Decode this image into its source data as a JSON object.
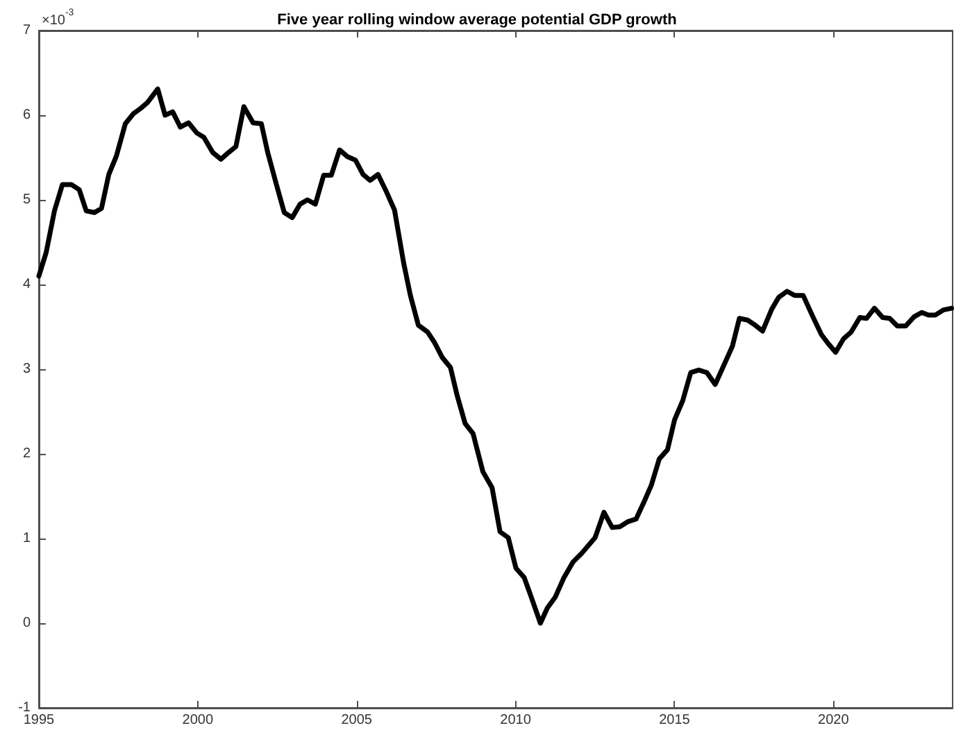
{
  "chart_data": {
    "type": "line",
    "title": "Five year rolling window average potential GDP growth",
    "annotations": [
      "×10$^{-3}$"
    ],
    "x": [
      1995.0,
      1995.23,
      1995.49,
      1995.74,
      1996.03,
      1996.27,
      1996.49,
      1996.75,
      1996.97,
      1997.2,
      1997.44,
      1997.72,
      1997.98,
      1998.2,
      1998.42,
      1998.74,
      1998.97,
      1999.21,
      1999.45,
      1999.71,
      1999.97,
      2000.19,
      2000.47,
      2000.73,
      2000.97,
      2001.2,
      2001.45,
      2001.74,
      2002.0,
      2002.2,
      2002.46,
      2002.72,
      2002.97,
      2003.22,
      2003.45,
      2003.7,
      2003.96,
      2004.2,
      2004.46,
      2004.71,
      2004.96,
      2005.2,
      2005.42,
      2005.67,
      2005.93,
      2006.19,
      2006.48,
      2006.69,
      2006.94,
      2007.23,
      2007.44,
      2007.69,
      2007.95,
      2008.16,
      2008.41,
      2008.66,
      2008.97,
      2009.26,
      2009.51,
      2009.77,
      2010.01,
      2010.27,
      2010.49,
      2010.78,
      2011.0,
      2011.25,
      2011.51,
      2011.8,
      2012.09,
      2012.5,
      2012.78,
      2013.04,
      2013.28,
      2013.54,
      2013.79,
      2014.05,
      2014.27,
      2014.52,
      2014.78,
      2015.0,
      2015.26,
      2015.51,
      2015.77,
      2016.02,
      2016.28,
      2016.82,
      2017.04,
      2017.3,
      2017.5,
      2017.77,
      2018.06,
      2018.28,
      2018.54,
      2018.79,
      2019.05,
      2019.34,
      2019.62,
      2019.84,
      2020.07,
      2020.32,
      2020.56,
      2020.83,
      2021.04,
      2021.29,
      2021.55,
      2021.77,
      2022.01,
      2022.27,
      2022.54,
      2022.78,
      2022.99,
      2023.21,
      2023.46,
      2023.72
    ],
    "series": [
      {
        "color": "#000000",
        "values": [
          4.1,
          4.38,
          4.87,
          5.18,
          5.18,
          5.12,
          4.87,
          4.85,
          4.9,
          5.3,
          5.52,
          5.9,
          6.02,
          6.08,
          6.15,
          6.31,
          6.0,
          6.04,
          5.86,
          5.91,
          5.79,
          5.74,
          5.56,
          5.48,
          5.56,
          5.63,
          6.1,
          5.91,
          5.9,
          5.56,
          5.2,
          4.85,
          4.79,
          4.95,
          5.0,
          4.95,
          5.29,
          5.29,
          5.59,
          5.51,
          5.47,
          5.3,
          5.23,
          5.3,
          5.1,
          4.88,
          4.25,
          3.87,
          3.52,
          3.44,
          3.32,
          3.14,
          3.02,
          2.69,
          2.36,
          2.24,
          1.79,
          1.6,
          1.08,
          1.01,
          0.65,
          0.54,
          0.31,
          0.0,
          0.18,
          0.31,
          0.53,
          0.72,
          0.83,
          1.01,
          1.31,
          1.13,
          1.14,
          1.2,
          1.23,
          1.44,
          1.63,
          1.94,
          2.05,
          2.4,
          2.63,
          2.96,
          2.99,
          2.96,
          2.82,
          3.27,
          3.6,
          3.58,
          3.53,
          3.45,
          3.71,
          3.85,
          3.92,
          3.87,
          3.87,
          3.63,
          3.41,
          3.3,
          3.2,
          3.36,
          3.44,
          3.61,
          3.6,
          3.72,
          3.61,
          3.6,
          3.51,
          3.51,
          3.62,
          3.67,
          3.64,
          3.64,
          3.7,
          3.72
        ]
      }
    ],
    "xlim": [
      1995,
      2023.75
    ],
    "xticks": [
      1995,
      2000,
      2005,
      2010,
      2015,
      2020
    ],
    "ylim": [
      -1,
      7
    ],
    "yticks": [
      -1,
      0,
      1,
      2,
      3,
      4,
      5,
      6,
      7
    ],
    "grid": false,
    "marker": "none",
    "line_style": "solid"
  }
}
